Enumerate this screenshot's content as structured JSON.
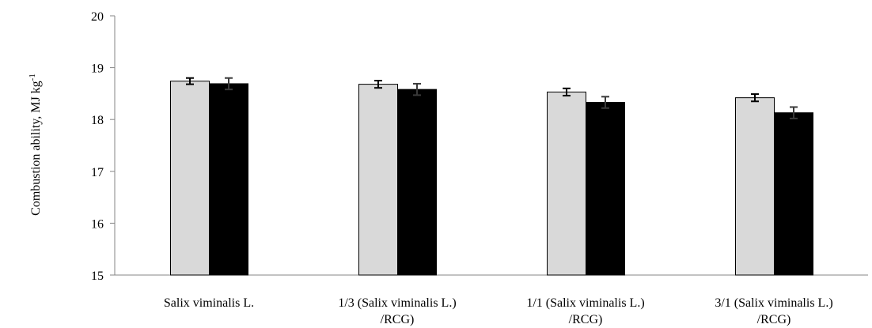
{
  "chart_data": {
    "type": "bar",
    "title": "",
    "xlabel": "",
    "ylabel": "Combustion ability, MJ kg",
    "ylabel_superscript": "-1",
    "ylim": [
      15,
      20
    ],
    "yticks": [
      15,
      16,
      17,
      18,
      19,
      20
    ],
    "categories": [
      [
        "Salix viminalis L."
      ],
      [
        "1/3 (Salix viminalis L.)",
        "/RCG)"
      ],
      [
        "1/1 (Salix viminalis L.)",
        "/RCG)"
      ],
      [
        "3/1 (Salix viminalis L.)",
        "/RCG)"
      ]
    ],
    "series": [
      {
        "color": "#d9d9d9",
        "values": [
          18.74,
          18.68,
          18.53,
          18.42
        ],
        "errors": [
          0.06,
          0.07,
          0.07,
          0.07
        ]
      },
      {
        "color": "#000000",
        "values": [
          18.69,
          18.58,
          18.33,
          18.13
        ],
        "errors": [
          0.11,
          0.11,
          0.11,
          0.11
        ]
      }
    ],
    "grid": false,
    "legend": "none"
  }
}
